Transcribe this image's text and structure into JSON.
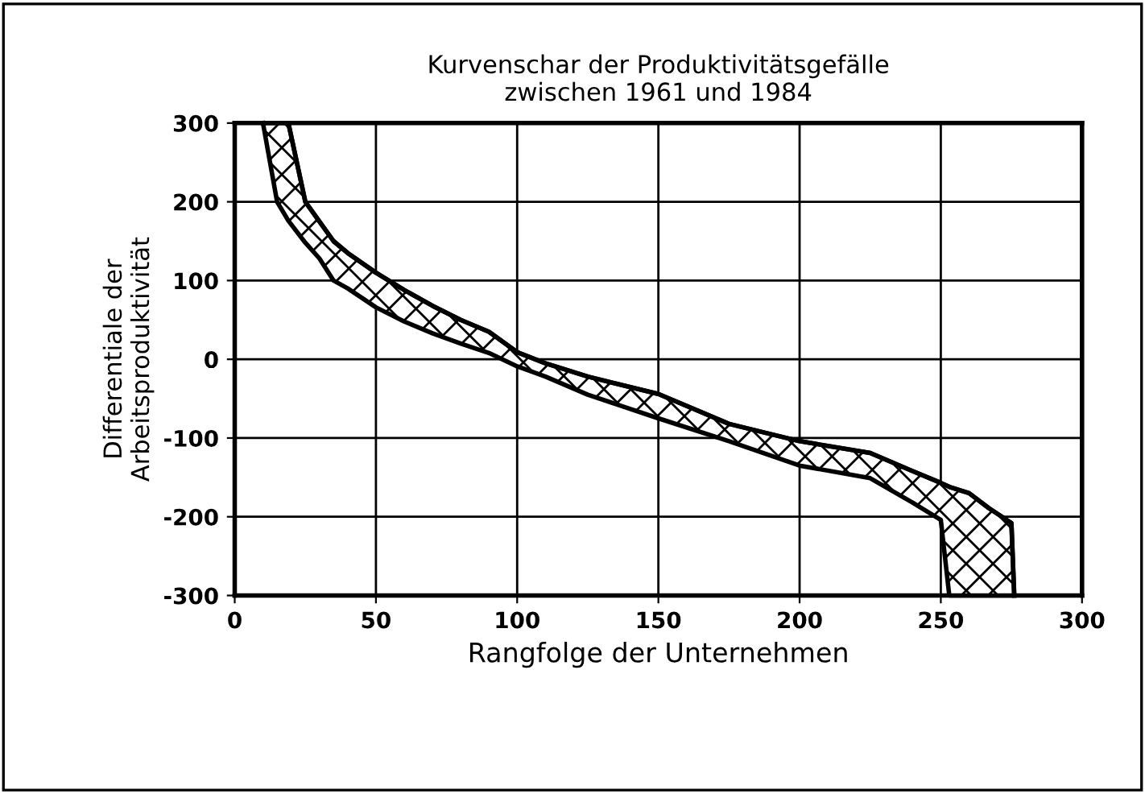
{
  "chart_data": {
    "type": "line",
    "title": "Kurvenschar der Produktivitätsgefälle\nzwischen 1961 und 1984",
    "xlabel": "Rangfolge der Unternehmen",
    "ylabel": "Differentiale der\nArbeitsproduktivität",
    "x": [
      10,
      15,
      19,
      25,
      30,
      35,
      40,
      50,
      60,
      70,
      80,
      90,
      100,
      110,
      125,
      150,
      175,
      200,
      225,
      240,
      250,
      253,
      260,
      267,
      275,
      276
    ],
    "series": [
      {
        "color": "#000000",
        "values": [
          300,
          300,
          300,
          200,
          175,
          150,
          135,
          110,
          88,
          68,
          50,
          35,
          9,
          -5,
          -22,
          -44,
          -82,
          -104,
          -119,
          -142,
          -157,
          -162,
          -170,
          -189,
          -208,
          -300
        ],
        "lower": [
          300,
          200,
          176,
          148,
          128,
          100,
          90,
          66,
          48,
          33,
          20,
          8,
          -9,
          -22,
          -45,
          -75,
          -104,
          -135,
          -151,
          -182,
          -204,
          -300,
          -300,
          -300,
          -300,
          -300
        ],
        "upper": [
          300,
          300,
          300,
          200,
          175,
          150,
          135,
          110,
          88,
          68,
          50,
          35,
          9,
          -5,
          -22,
          -44,
          -82,
          -104,
          -119,
          -142,
          -157,
          -162,
          -170,
          -189,
          -208,
          -300
        ]
      }
    ],
    "xlim": [
      0,
      300
    ],
    "ylim": [
      -300,
      300
    ],
    "xticks": [
      0,
      50,
      100,
      150,
      200,
      250,
      300
    ],
    "yticks": [
      -300,
      -200,
      -100,
      0,
      100,
      200,
      300
    ],
    "grid": true
  }
}
